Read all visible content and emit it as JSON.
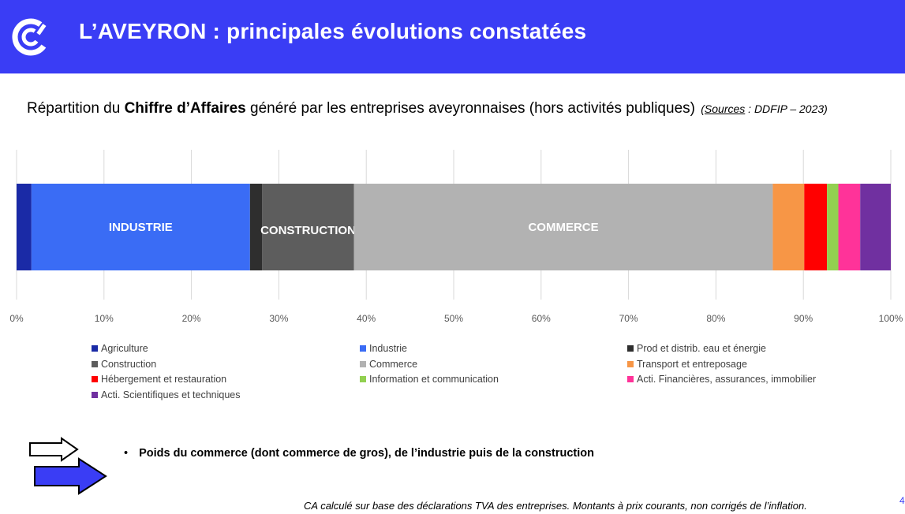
{
  "header": {
    "title": "L’AVEYRON : principales évolutions constatées",
    "background": "#3a3df5",
    "logo": "cci-logo-icon"
  },
  "subtitle": {
    "before": "Répartition du ",
    "bold": "Chiffre d’Affaires",
    "after": " généré par les entreprises aveyronnaises (hors activités publiques) ",
    "source_open": "(",
    "source_label": "Sources",
    "source_rest": " : DDFIP – 2023)"
  },
  "chart_data": {
    "type": "bar",
    "orientation": "horizontal",
    "stacked": true,
    "unit": "%",
    "xlim": [
      0,
      100
    ],
    "x_ticks": [
      "0%",
      "10%",
      "20%",
      "30%",
      "40%",
      "50%",
      "60%",
      "70%",
      "80%",
      "90%",
      "100%"
    ],
    "grid": true,
    "legend_position": "bottom",
    "series": [
      {
        "name": "Agriculture",
        "value": 1.7,
        "color": "#1a2aa6",
        "label": ""
      },
      {
        "name": "Industrie",
        "value": 25.0,
        "color": "#3a6cf5",
        "label": "INDUSTRIE"
      },
      {
        "name": "Prod et distrib. eau et énergie",
        "value": 1.4,
        "color": "#2e2e2e",
        "label": ""
      },
      {
        "name": "Construction",
        "value": 10.5,
        "color": "#5d5d5d",
        "label": "CONSTRUCTION"
      },
      {
        "name": "Commerce",
        "value": 47.9,
        "color": "#b2b2b2",
        "label": "COMMERCE"
      },
      {
        "name": "Transport et entreposage",
        "value": 3.6,
        "color": "#f79646",
        "label": ""
      },
      {
        "name": "Hébergement et restauration",
        "value": 2.6,
        "color": "#ff0000",
        "label": ""
      },
      {
        "name": "Information et communication",
        "value": 1.3,
        "color": "#92d050",
        "label": ""
      },
      {
        "name": "Acti. Financières, assurances, immobilier",
        "value": 2.5,
        "color": "#ff3399",
        "label": ""
      },
      {
        "name": "Acti. Scientifiques et techniques",
        "value": 3.5,
        "color": "#7030a0",
        "label": ""
      }
    ]
  },
  "bullet": {
    "marker": "•",
    "text": "Poids du commerce (dont commerce de gros), de l’industrie puis de la construction"
  },
  "arrows_icon": "double-arrow-icon",
  "footnote": "CA calculé sur base des déclarations TVA des entreprises. Montants à prix courants, non corrigés de l’inflation.",
  "page_number": "4"
}
